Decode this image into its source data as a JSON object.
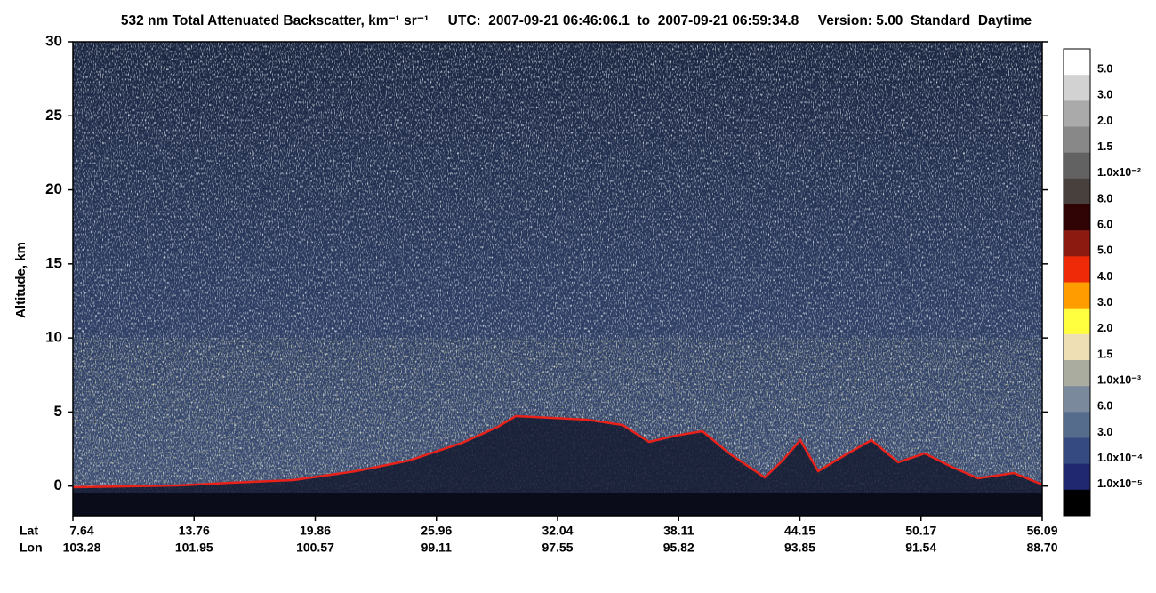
{
  "chart_data": {
    "type": "heatmap",
    "title": "532 nm Total Attenuated Backscatter, km⁻¹ sr⁻¹     UTC:  2007-09-21 06:46:06.1  to  2007-09-21 06:59:34.8     Version: 5.00  Standard  Daytime",
    "ylabel": "Altitude, km",
    "ylim": [
      -2,
      30
    ],
    "yticks": [
      0,
      5,
      10,
      15,
      20,
      25,
      30
    ],
    "x_rows": [
      {
        "name": "Lat",
        "labels": [
          "7.64",
          "13.76",
          "19.86",
          "25.96",
          "32.04",
          "38.11",
          "44.15",
          "50.17",
          "56.09"
        ]
      },
      {
        "name": "Lon",
        "labels": [
          "103.28",
          "101.95",
          "100.57",
          "99.11",
          "97.55",
          "95.82",
          "93.85",
          "91.54",
          "88.70"
        ]
      }
    ],
    "colorbar": {
      "labels": [
        "5.0",
        "3.0",
        "2.0",
        "1.5",
        "1.0x10⁻²",
        "8.0",
        "6.0",
        "5.0",
        "4.0",
        "3.0",
        "2.0",
        "1.5",
        "1.0x10⁻³",
        "6.0",
        "3.0",
        "1.0x10⁻⁴",
        "1.0x10⁻⁵"
      ],
      "colors": [
        "#ffffff",
        "#d2d2d2",
        "#aaaaaa",
        "#888888",
        "#626262",
        "#48403c",
        "#300404",
        "#8c1a10",
        "#ee2a08",
        "#ff9c00",
        "#ffff40",
        "#eee0b4",
        "#aaaca0",
        "#7a8a9c",
        "#566c8c",
        "#344a80",
        "#202870",
        "#000000"
      ]
    }
  }
}
